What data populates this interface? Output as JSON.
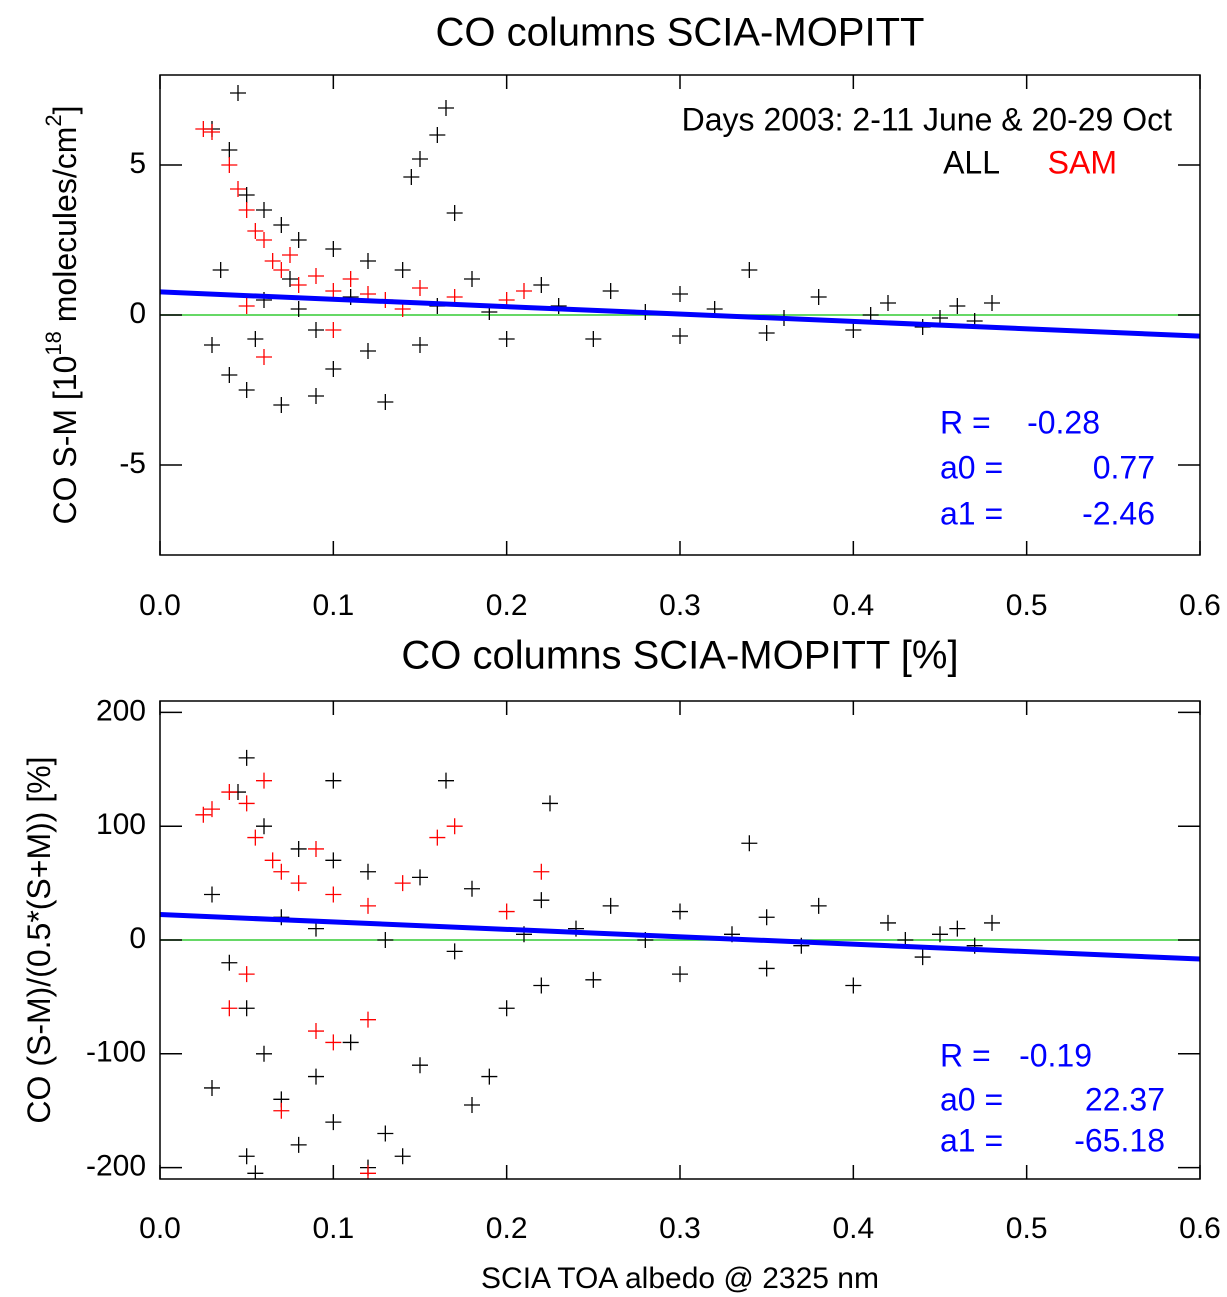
{
  "chart_data": [
    {
      "type": "scatter",
      "title": "CO columns SCIA-MOPITT",
      "ylabel": [
        "CO S-M [10",
        "18",
        " molecules/cm",
        "2",
        "]"
      ],
      "annotation": "Days 2003: 2-11 June & 20-29 Oct",
      "xlim": [
        0,
        0.6
      ],
      "xticks": [
        {
          "value": 0,
          "label": "0.0"
        },
        0.1,
        0.2,
        0.3,
        0.4,
        0.5,
        0.6
      ],
      "ylim": [
        -8,
        8
      ],
      "yticks": [
        -5,
        0,
        5
      ],
      "hline": 0,
      "hline_color": "#33cc33",
      "fit": {
        "color": "#0000ff",
        "labels": [
          "R  =",
          "a0 =",
          "a1 ="
        ],
        "R": -0.28,
        "a0": 0.77,
        "a1": -2.46,
        "value_labels": [
          "-0.28",
          "0.77",
          "-2.46"
        ]
      },
      "series": [
        {
          "name": "ALL",
          "color": "#000000",
          "x": [
            0.045,
            0.03,
            0.165,
            0.16,
            0.15,
            0.145,
            0.17,
            0.04,
            0.05,
            0.06,
            0.07,
            0.08,
            0.1,
            0.12,
            0.14,
            0.18,
            0.22,
            0.26,
            0.3,
            0.34,
            0.38,
            0.42,
            0.46,
            0.48,
            0.03,
            0.04,
            0.05,
            0.07,
            0.09,
            0.13,
            0.1,
            0.12,
            0.15,
            0.2,
            0.25,
            0.3,
            0.35,
            0.4,
            0.44,
            0.47,
            0.06,
            0.08,
            0.11,
            0.16,
            0.19,
            0.23,
            0.28,
            0.32,
            0.36,
            0.41,
            0.45,
            0.035,
            0.055,
            0.075,
            0.09
          ],
          "values": [
            7.4,
            6.2,
            6.9,
            6.0,
            5.2,
            4.6,
            3.4,
            5.5,
            4.0,
            3.5,
            3.0,
            2.5,
            2.2,
            1.8,
            1.5,
            1.2,
            1.0,
            0.8,
            0.7,
            1.5,
            0.6,
            0.4,
            0.3,
            0.4,
            -1.0,
            -2.0,
            -2.5,
            -3.0,
            -2.7,
            -2.9,
            -1.8,
            -1.2,
            -1.0,
            -0.8,
            -0.8,
            -0.7,
            -0.6,
            -0.5,
            -0.4,
            -0.2,
            0.5,
            0.2,
            0.6,
            0.3,
            0.1,
            0.3,
            0.1,
            0.2,
            -0.1,
            0.0,
            -0.1,
            1.5,
            -0.8,
            1.2,
            -0.5
          ]
        },
        {
          "name": "SAM",
          "color": "#ff0000",
          "x": [
            0.025,
            0.03,
            0.04,
            0.045,
            0.05,
            0.055,
            0.06,
            0.065,
            0.07,
            0.075,
            0.08,
            0.09,
            0.1,
            0.11,
            0.12,
            0.13,
            0.15,
            0.17,
            0.2,
            0.21,
            0.06,
            0.1,
            0.14,
            0.05
          ],
          "values": [
            6.2,
            6.1,
            5.0,
            4.2,
            3.5,
            2.8,
            2.5,
            1.8,
            1.5,
            2.0,
            1.0,
            1.3,
            0.8,
            1.2,
            0.7,
            0.5,
            0.9,
            0.6,
            0.5,
            0.8,
            -1.4,
            -0.5,
            0.2,
            0.3
          ]
        }
      ]
    },
    {
      "type": "scatter",
      "title": "CO columns SCIA-MOPITT [%]",
      "ylabel": [
        "CO (S-M)/(0.5*(S+M)) [%]"
      ],
      "xlabel": "SCIA TOA albedo @ 2325 nm",
      "xlim": [
        0,
        0.6
      ],
      "xticks": [
        {
          "value": 0,
          "label": "0.0"
        },
        0.1,
        0.2,
        0.3,
        0.4,
        0.5,
        0.6
      ],
      "ylim": [
        -210,
        210
      ],
      "yticks": [
        -200,
        -100,
        0,
        100,
        200
      ],
      "hline": 0,
      "hline_color": "#33cc33",
      "fit": {
        "color": "#0000ff",
        "labels": [
          "R =",
          "a0 =",
          "a1 ="
        ],
        "R": -0.19,
        "a0": 22.37,
        "a1": -65.18,
        "value_labels": [
          "-0.19",
          "22.37",
          "-65.18"
        ]
      },
      "series": [
        {
          "name": "ALL",
          "color": "#000000",
          "x": [
            0.05,
            0.045,
            0.1,
            0.165,
            0.225,
            0.34,
            0.06,
            0.08,
            0.1,
            0.12,
            0.15,
            0.18,
            0.22,
            0.26,
            0.3,
            0.35,
            0.38,
            0.42,
            0.46,
            0.48,
            0.03,
            0.04,
            0.05,
            0.06,
            0.07,
            0.08,
            0.05,
            0.1,
            0.12,
            0.13,
            0.14,
            0.09,
            0.11,
            0.15,
            0.18,
            0.19,
            0.2,
            0.22,
            0.25,
            0.3,
            0.35,
            0.4,
            0.44,
            0.47,
            0.07,
            0.09,
            0.13,
            0.17,
            0.21,
            0.24,
            0.28,
            0.33,
            0.37,
            0.43,
            0.45,
            0.03,
            0.055
          ],
          "values": [
            160,
            130,
            140,
            140,
            120,
            85,
            100,
            80,
            70,
            60,
            55,
            45,
            35,
            30,
            25,
            20,
            30,
            15,
            10,
            15,
            40,
            -20,
            -60,
            -100,
            -140,
            -180,
            -190,
            -160,
            -200,
            -170,
            -190,
            -120,
            -90,
            -110,
            -145,
            -120,
            -60,
            -40,
            -35,
            -30,
            -25,
            -40,
            -15,
            -5,
            20,
            10,
            0,
            -10,
            5,
            10,
            0,
            5,
            -5,
            0,
            5,
            -130,
            -205
          ]
        },
        {
          "name": "SAM",
          "color": "#ff0000",
          "x": [
            0.025,
            0.03,
            0.04,
            0.05,
            0.055,
            0.06,
            0.065,
            0.07,
            0.08,
            0.09,
            0.1,
            0.12,
            0.14,
            0.16,
            0.17,
            0.2,
            0.22,
            0.05,
            0.07,
            0.09,
            0.1,
            0.12,
            0.04,
            0.12
          ],
          "values": [
            110,
            115,
            130,
            120,
            90,
            140,
            70,
            60,
            50,
            80,
            40,
            30,
            50,
            90,
            100,
            25,
            60,
            -30,
            -150,
            -80,
            -90,
            -70,
            -60,
            -205
          ]
        }
      ]
    }
  ]
}
